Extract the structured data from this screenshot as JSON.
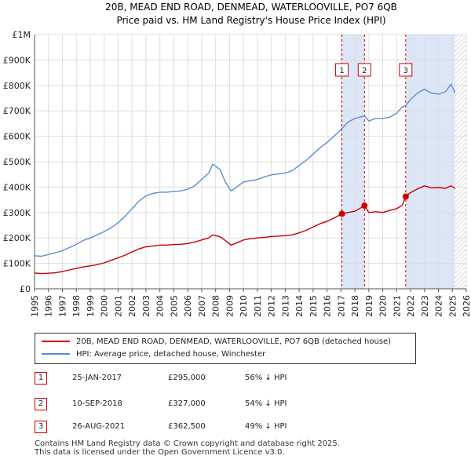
{
  "chart_data": {
    "type": "line",
    "title": "20B, MEAD END ROAD, DENMEAD, WATERLOOVILLE, PO7 6QB",
    "subtitle": "Price paid vs. HM Land Registry's House Price Index (HPI)",
    "xlim": [
      1995,
      2026
    ],
    "ylim": [
      0,
      1000000
    ],
    "x_ticks": [
      "1995",
      "1996",
      "1997",
      "1998",
      "1999",
      "2000",
      "2001",
      "2002",
      "2003",
      "2004",
      "2005",
      "2006",
      "2007",
      "2008",
      "2009",
      "2010",
      "2011",
      "2012",
      "2013",
      "2014",
      "2015",
      "2016",
      "2017",
      "2018",
      "2019",
      "2020",
      "2021",
      "2022",
      "2023",
      "2024",
      "2025",
      "2026"
    ],
    "y_ticks": [
      {
        "value": 0,
        "label": "£0"
      },
      {
        "value": 100000,
        "label": "£100K"
      },
      {
        "value": 200000,
        "label": "£200K"
      },
      {
        "value": 300000,
        "label": "£300K"
      },
      {
        "value": 400000,
        "label": "£400K"
      },
      {
        "value": 500000,
        "label": "£500K"
      },
      {
        "value": 600000,
        "label": "£600K"
      },
      {
        "value": 700000,
        "label": "£700K"
      },
      {
        "value": 800000,
        "label": "£800K"
      },
      {
        "value": 900000,
        "label": "£900K"
      },
      {
        "value": 1000000,
        "label": "£1M"
      }
    ],
    "grid": true,
    "series": [
      {
        "name": "20B, MEAD END ROAD, DENMEAD, WATERLOOVILLE, PO7 6QB (detached house)",
        "color": "#cc0000",
        "x": [
          1995.0,
          1995.5,
          1996.0,
          1996.5,
          1997.0,
          1997.5,
          1998.0,
          1998.5,
          1999.0,
          1999.5,
          2000.0,
          2000.5,
          2001.0,
          2001.5,
          2002.0,
          2002.5,
          2003.0,
          2003.5,
          2004.0,
          2004.5,
          2005.0,
          2005.5,
          2006.0,
          2006.5,
          2007.0,
          2007.5,
          2007.8,
          2008.3,
          2008.7,
          2009.1,
          2009.5,
          2010.0,
          2010.5,
          2011.0,
          2011.5,
          2012.0,
          2012.5,
          2013.0,
          2013.5,
          2014.0,
          2014.5,
          2015.0,
          2015.5,
          2016.0,
          2016.5,
          2017.07,
          2017.5,
          2018.0,
          2018.69,
          2019.0,
          2019.5,
          2020.0,
          2020.5,
          2021.0,
          2021.4,
          2021.65,
          2022.0,
          2022.5,
          2023.0,
          2023.5,
          2024.0,
          2024.5,
          2024.9,
          2025.2
        ],
        "values": [
          62000,
          60000,
          61000,
          63000,
          68000,
          74000,
          80000,
          86000,
          90000,
          95000,
          102000,
          112000,
          122000,
          132000,
          145000,
          157000,
          165000,
          168000,
          172000,
          172000,
          174000,
          175000,
          178000,
          184000,
          192000,
          200000,
          212000,
          205000,
          190000,
          172000,
          180000,
          192000,
          197000,
          200000,
          202000,
          206000,
          207000,
          209000,
          212000,
          220000,
          230000,
          243000,
          256000,
          265000,
          278000,
          295000,
          300000,
          305000,
          327000,
          300000,
          303000,
          300000,
          308000,
          315000,
          328000,
          362500,
          378000,
          393000,
          405000,
          397000,
          398000,
          395000,
          405000,
          395000
        ]
      },
      {
        "name": "HPI: Average price, detached house, Winchester",
        "color": "#5b8fd0",
        "x": [
          1995.0,
          1995.5,
          1996.0,
          1996.5,
          1997.0,
          1997.5,
          1998.0,
          1998.5,
          1999.0,
          1999.5,
          2000.0,
          2000.5,
          2001.0,
          2001.5,
          2002.0,
          2002.5,
          2003.0,
          2003.5,
          2004.0,
          2004.5,
          2005.0,
          2005.5,
          2006.0,
          2006.5,
          2007.0,
          2007.5,
          2007.8,
          2008.3,
          2008.7,
          2009.1,
          2009.5,
          2010.0,
          2010.5,
          2011.0,
          2011.5,
          2012.0,
          2012.5,
          2013.0,
          2013.5,
          2014.0,
          2014.5,
          2015.0,
          2015.5,
          2016.0,
          2016.5,
          2017.07,
          2017.5,
          2018.0,
          2018.69,
          2019.0,
          2019.5,
          2020.0,
          2020.5,
          2021.0,
          2021.4,
          2021.65,
          2022.0,
          2022.5,
          2023.0,
          2023.5,
          2024.0,
          2024.5,
          2024.9,
          2025.2
        ],
        "values": [
          130000,
          128000,
          135000,
          142000,
          150000,
          162000,
          175000,
          190000,
          200000,
          212000,
          225000,
          240000,
          260000,
          285000,
          315000,
          345000,
          365000,
          375000,
          380000,
          380000,
          383000,
          385000,
          392000,
          405000,
          430000,
          455000,
          490000,
          470000,
          420000,
          385000,
          400000,
          420000,
          425000,
          430000,
          440000,
          448000,
          452000,
          455000,
          465000,
          485000,
          505000,
          530000,
          555000,
          575000,
          600000,
          630000,
          655000,
          670000,
          680000,
          660000,
          670000,
          670000,
          675000,
          690000,
          715000,
          720000,
          745000,
          770000,
          785000,
          770000,
          765000,
          775000,
          805000,
          770000
        ]
      }
    ],
    "sales": [
      {
        "marker": "1",
        "x": 2017.07,
        "value": 295000,
        "date": "25-JAN-2017",
        "price": "£295,000",
        "hpi": "56% ↓ HPI"
      },
      {
        "marker": "2",
        "x": 2018.69,
        "value": 327000,
        "date": "10-SEP-2018",
        "price": "£327,000",
        "hpi": "54% ↓ HPI"
      },
      {
        "marker": "3",
        "x": 2021.65,
        "value": 362500,
        "date": "26-AUG-2021",
        "price": "£362,500",
        "hpi": "49% ↓ HPI"
      }
    ],
    "shaded_ranges": [
      [
        2017.07,
        2018.69
      ],
      [
        2021.65,
        2025.2
      ]
    ],
    "hatched_range": [
      2025.2,
      2026
    ],
    "legend_location": "below"
  },
  "colors": {
    "price_line": "#cc0000",
    "hpi_line": "#5b8fd0",
    "shade": "#dde6f7",
    "grid": "#dddddd"
  },
  "footer": {
    "line1": "Contains HM Land Registry data © Crown copyright and database right 2025.",
    "line2": "This data is licensed under the Open Government Licence v3.0."
  }
}
